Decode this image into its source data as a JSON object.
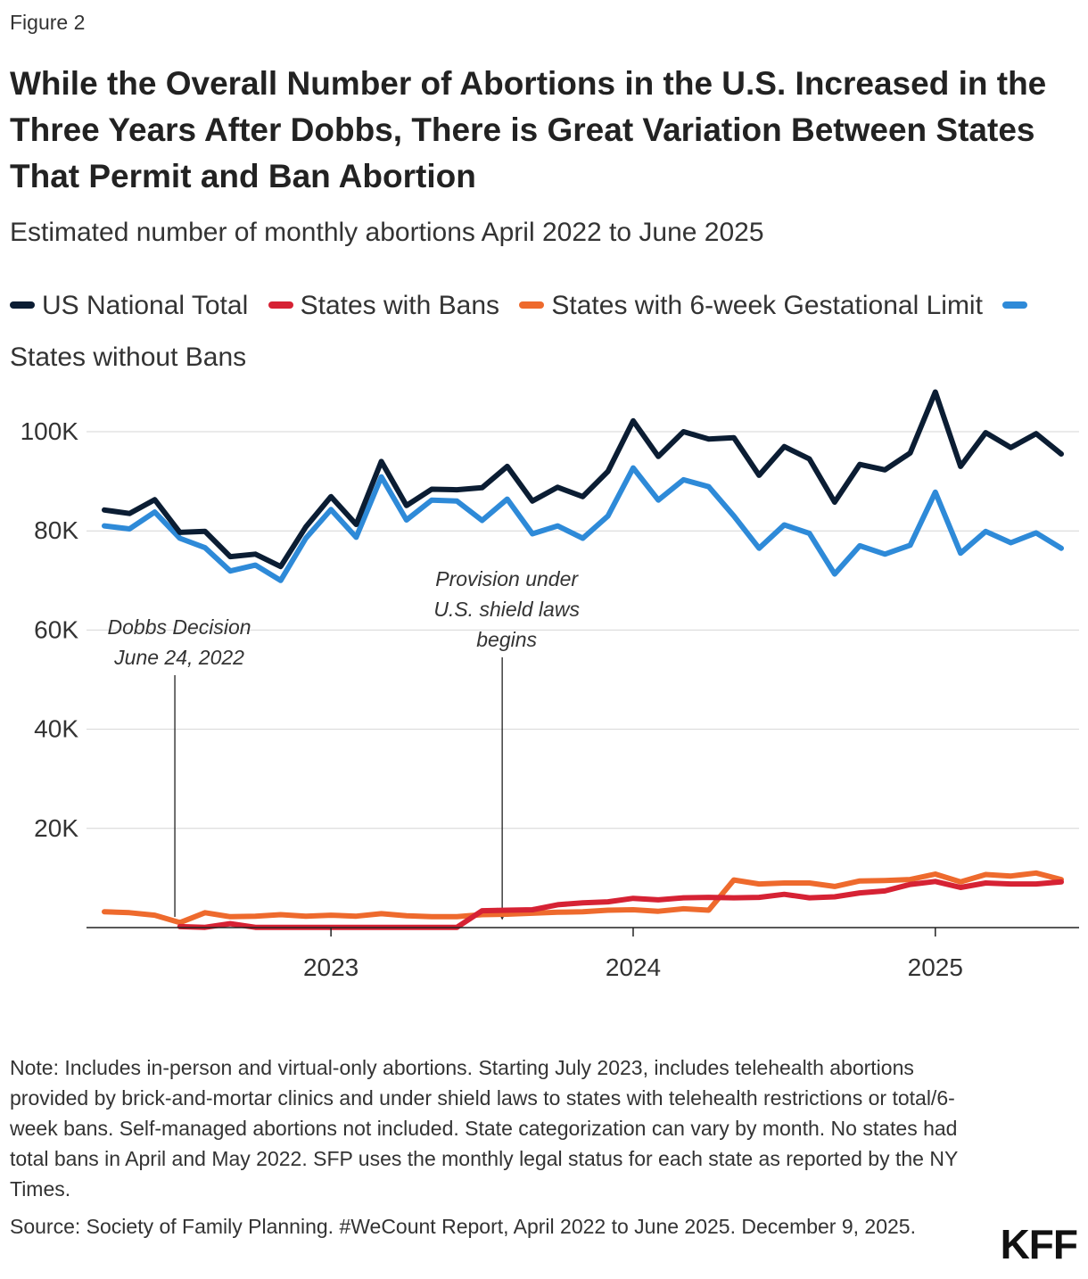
{
  "figure_label": "Figure 2",
  "title": "While the Overall Number of Abortions in the U.S. Increased in the Three Years After Dobbs, There is Great Variation Between States That Permit and Ban Abortion",
  "subtitle": "Estimated number of monthly abortions April 2022 to June 2025",
  "legend": [
    {
      "label": "US National Total",
      "color": "#0b1d33"
    },
    {
      "label": "States with Bans",
      "color": "#d62234"
    },
    {
      "label": "States with 6-week Gestational Limit",
      "color": "#ee6a2d"
    },
    {
      "label": "States without Bans",
      "color": "#2e8ad8"
    }
  ],
  "note": "Note: Includes in-person and virtual-only abortions. Starting July 2023, includes telehealth abortions provided by brick-and-mortar clinics and under shield laws to states with telehealth restrictions or total/6-week bans. Self-managed abortions not included. State categorization can vary by month. No states had total bans in April and May 2022. SFP uses the monthly legal status for each state as reported by the NY Times.",
  "source": "Source: Society of Family Planning. #WeCount Report, April 2022 to June 2025. December 9, 2025.",
  "logo": "KFF",
  "chart_data": {
    "type": "line",
    "title": "Estimated number of monthly abortions April 2022 to June 2025",
    "xlabel": "",
    "ylabel": "",
    "ylim": [
      0,
      100000
    ],
    "yticks": [
      20000,
      40000,
      60000,
      80000,
      100000
    ],
    "ytick_labels": [
      "20K",
      "40K",
      "60K",
      "80K",
      "100K"
    ],
    "xticks": [
      {
        "index": 9,
        "label": "2023"
      },
      {
        "index": 21,
        "label": "2024"
      },
      {
        "index": 33,
        "label": "2025"
      }
    ],
    "grid": true,
    "x": [
      "2022-04",
      "2022-05",
      "2022-06",
      "2022-07",
      "2022-08",
      "2022-09",
      "2022-10",
      "2022-11",
      "2022-12",
      "2023-01",
      "2023-02",
      "2023-03",
      "2023-04",
      "2023-05",
      "2023-06",
      "2023-07",
      "2023-08",
      "2023-09",
      "2023-10",
      "2023-11",
      "2023-12",
      "2024-01",
      "2024-02",
      "2024-03",
      "2024-04",
      "2024-05",
      "2024-06",
      "2024-07",
      "2024-08",
      "2024-09",
      "2024-10",
      "2024-11",
      "2024-12",
      "2025-01",
      "2025-02",
      "2025-03",
      "2025-04",
      "2025-05",
      "2025-06"
    ],
    "series": [
      {
        "name": "US National Total",
        "color": "#0b1d33",
        "values": [
          84200,
          83500,
          86300,
          79700,
          79900,
          74800,
          75300,
          72800,
          80800,
          86900,
          81300,
          94000,
          85100,
          88400,
          88300,
          88700,
          93000,
          86000,
          88800,
          86900,
          92000,
          102200,
          95000,
          100000,
          98500,
          98800,
          91200,
          97000,
          94500,
          85800,
          93400,
          92300,
          95700,
          108000,
          93000,
          99800,
          96800,
          99600,
          95500
        ]
      },
      {
        "name": "States with Bans",
        "color": "#d62234",
        "start": 3,
        "values": [
          null,
          null,
          null,
          200,
          50,
          800,
          60,
          50,
          50,
          40,
          40,
          40,
          40,
          40,
          40,
          3400,
          3500,
          3600,
          4600,
          5000,
          5200,
          5900,
          5600,
          6000,
          6100,
          6000,
          6100,
          6700,
          6000,
          6200,
          7000,
          7400,
          8700,
          9300,
          8100,
          9000,
          8800,
          8800,
          9200
        ]
      },
      {
        "name": "States with 6-week Gestational Limit",
        "color": "#ee6a2d",
        "values": [
          3200,
          3000,
          2500,
          1000,
          3000,
          2200,
          2300,
          2600,
          2300,
          2500,
          2300,
          2800,
          2400,
          2200,
          2200,
          2600,
          2700,
          2900,
          3100,
          3200,
          3500,
          3600,
          3300,
          3800,
          3500,
          9600,
          8800,
          9000,
          9000,
          8300,
          9400,
          9500,
          9700,
          10800,
          9200,
          10700,
          10400,
          11000,
          9700
        ]
      },
      {
        "name": "States without Bans",
        "color": "#2e8ad8",
        "values": [
          81000,
          80400,
          83800,
          78500,
          76600,
          71900,
          73100,
          70000,
          78500,
          84300,
          78700,
          90900,
          82200,
          86200,
          86000,
          82100,
          86400,
          79400,
          81000,
          78500,
          83000,
          92700,
          86200,
          90300,
          88900,
          83000,
          76500,
          81200,
          79500,
          71300,
          77000,
          75300,
          77100,
          87800,
          75500,
          79900,
          77600,
          79600,
          76500
        ]
      }
    ],
    "annotations": [
      {
        "lines": [
          "Dobbs Decision",
          "June 24, 2022"
        ],
        "x_index": 2.8,
        "style": "line"
      },
      {
        "lines": [
          "Provision under",
          "U.S. shield laws",
          "begins"
        ],
        "x_index": 15.8,
        "style": "arrow"
      }
    ]
  }
}
